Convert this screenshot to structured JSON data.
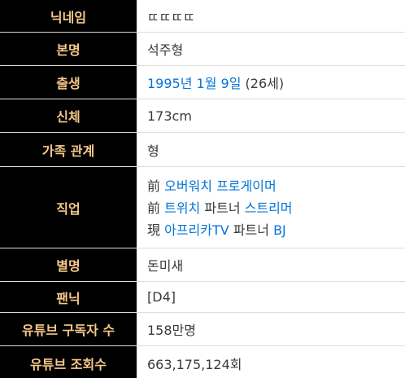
{
  "rows": {
    "nickname": {
      "label": "닉네임",
      "value": "ㄸㄸㄸㄸ"
    },
    "realname": {
      "label": "본명",
      "value": "석주형"
    },
    "birth": {
      "label": "출생",
      "year": "1995년",
      "date": "1월 9일",
      "age": "(26세)"
    },
    "body": {
      "label": "신체",
      "value": "173cm"
    },
    "family": {
      "label": "가족 관계",
      "value": "형"
    },
    "job": {
      "label": "직업",
      "lines": [
        {
          "prefix": "前",
          "link": "오버워치 프로게이머",
          "suffix": ""
        },
        {
          "prefix": "前",
          "link": "트위치",
          "mid": "파트너",
          "link2": "스트리머"
        },
        {
          "prefix": "現",
          "link": "아프리카TV",
          "mid": "파트너",
          "link2": "BJ"
        }
      ]
    },
    "alias": {
      "label": "별명",
      "value": "돈미새"
    },
    "fandom": {
      "label": "팬닉",
      "value": "[D4]"
    },
    "subscribers": {
      "label": "유튜브 구독자 수",
      "value": "158만명"
    },
    "views": {
      "label": "유튜브 조회수",
      "value": "663,175,124회"
    }
  },
  "colors": {
    "label_bg": "#000000",
    "label_text": "#f6c88a",
    "value_text": "#373a3c",
    "link": "#0275d8",
    "border": "#dddddd"
  }
}
